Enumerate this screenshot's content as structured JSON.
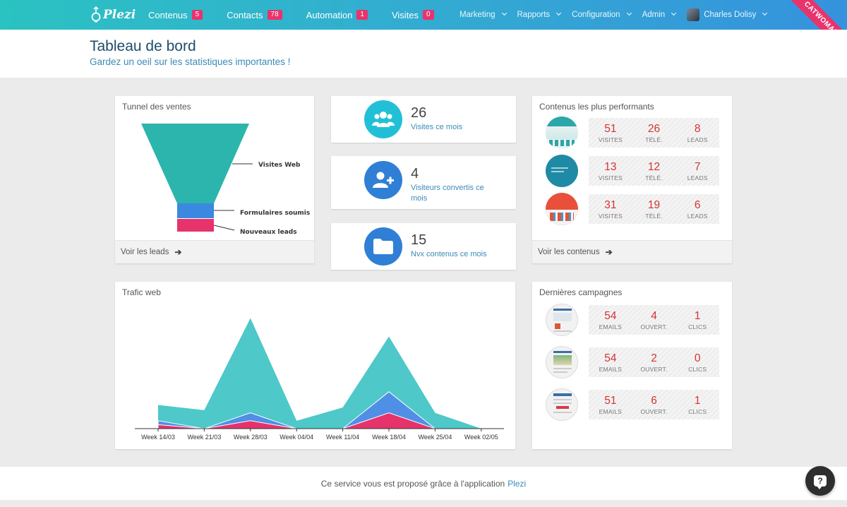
{
  "nav": {
    "logo": "Plezi",
    "main": [
      {
        "label": "Contenus",
        "badge": "5"
      },
      {
        "label": "Contacts",
        "badge": "78"
      },
      {
        "label": "Automation",
        "badge": "1"
      },
      {
        "label": "Visites",
        "badge": "0"
      }
    ],
    "right": [
      {
        "label": "Marketing"
      },
      {
        "label": "Rapports"
      },
      {
        "label": "Configuration"
      },
      {
        "label": "Admin"
      }
    ],
    "user": "Charles Dolisy",
    "ribbon": "CATWOMAN"
  },
  "header": {
    "title": "Tableau de bord",
    "subtitle": "Gardez un oeil sur les statistiques importantes !"
  },
  "funnel": {
    "title": "Tunnel des ventes",
    "labels": [
      "Visites Web",
      "Formulaires soumis",
      "Nouveaux leads"
    ],
    "colors": [
      "#2cb5ad",
      "#3a88e0",
      "#e6336b"
    ],
    "footer": "Voir les leads"
  },
  "stats": [
    {
      "number": "26",
      "label": "Visites ce mois",
      "icon": "users-icon",
      "color": "#22c0d6"
    },
    {
      "number": "4",
      "label": "Visiteurs convertis ce mois",
      "icon": "user-plus-icon",
      "color": "#2f7fd6"
    },
    {
      "number": "15",
      "label": "Nvx contenus ce mois",
      "icon": "folder-icon",
      "color": "#2f7fd6"
    }
  ],
  "top_contents": {
    "title": "Contenus les plus performants",
    "rows": [
      {
        "values": [
          "51",
          "26",
          "8"
        ],
        "labels": [
          "VISITES",
          "TÉLÉ.",
          "LEADS"
        ]
      },
      {
        "values": [
          "13",
          "12",
          "7"
        ],
        "labels": [
          "VISITES",
          "TÉLÉ.",
          "LEADS"
        ]
      },
      {
        "values": [
          "31",
          "19",
          "6"
        ],
        "labels": [
          "VISITES",
          "TÉLÉ.",
          "LEADS"
        ]
      }
    ],
    "footer": "Voir les contenus"
  },
  "traffic": {
    "title": "Trafic web"
  },
  "chart_data": {
    "type": "area",
    "categories": [
      "Week 14/03",
      "Week 21/03",
      "Week 28/03",
      "Week 04/04",
      "Week 11/04",
      "Week 18/04",
      "Week 25/04",
      "Week 02/05"
    ],
    "series": [
      {
        "values": [
          9,
          7,
          42,
          3,
          8,
          35,
          6,
          0
        ],
        "color": "#4ec8c8"
      },
      {
        "values": [
          3,
          0,
          6,
          0,
          0,
          14,
          0,
          0
        ],
        "color": "#4f8fe6"
      },
      {
        "values": [
          1.5,
          0,
          3,
          0,
          0,
          6,
          0,
          0
        ],
        "color": "#e6336b"
      }
    ],
    "ylim": [
      0,
      44
    ],
    "grid": false
  },
  "campaigns": {
    "title": "Dernières campagnes",
    "rows": [
      {
        "values": [
          "54",
          "4",
          "1"
        ],
        "labels": [
          "EMAILS",
          "OUVERT.",
          "CLICS"
        ]
      },
      {
        "values": [
          "54",
          "2",
          "0"
        ],
        "labels": [
          "EMAILS",
          "OUVERT.",
          "CLICS"
        ]
      },
      {
        "values": [
          "51",
          "6",
          "1"
        ],
        "labels": [
          "EMAILS",
          "OUVERT.",
          "CLICS"
        ]
      }
    ]
  },
  "footer": {
    "text": "Ce service vous est proposé grâce à l'application",
    "link": "Plezi"
  }
}
